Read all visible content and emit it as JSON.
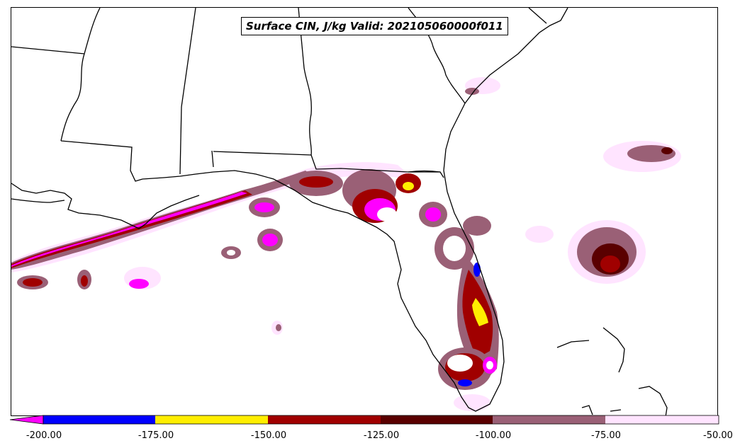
{
  "title": "Surface CIN, J/kg Valid: 202105060000f011",
  "colorbar": {
    "levels": [
      "-200.00",
      "-175.00",
      "-150.00",
      "-125.00",
      "-100.00",
      "-75.00",
      "-50.00"
    ],
    "colors": [
      "#0000ff",
      "#ffee00",
      "#a00000",
      "#5a0000",
      "#9a6076",
      "#ffe4ff"
    ],
    "extend_color": "#ff00ff",
    "extend": "min"
  },
  "map": {
    "projection": "lambert-conformal",
    "region": "southeastern US / Gulf of Mexico",
    "land_color": "#ffffff",
    "border_color": "#000000"
  }
}
